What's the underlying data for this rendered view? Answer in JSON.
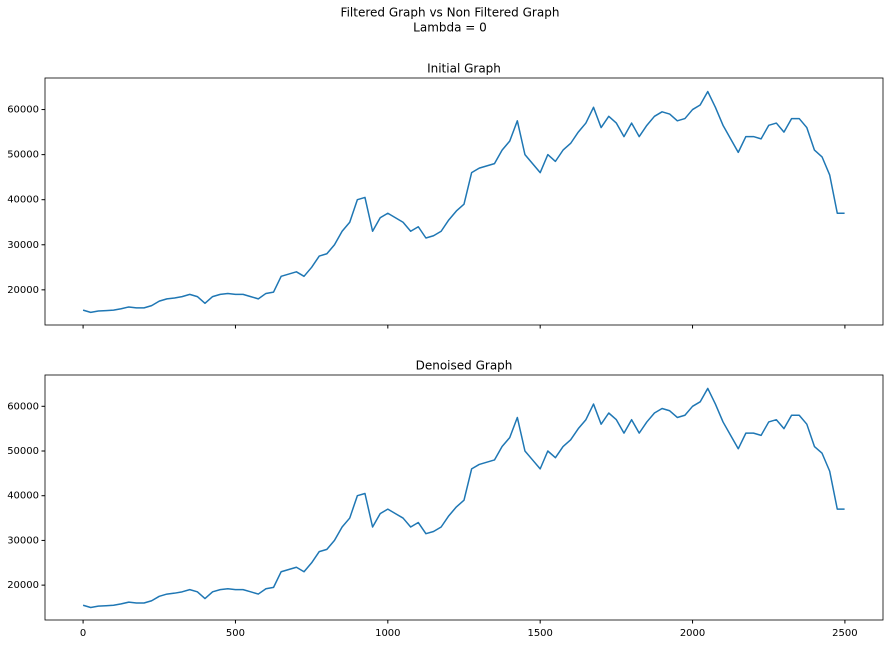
{
  "suptitle": "Filtered Graph vs Non Filtered Graph",
  "subtitle": "Lambda = 0",
  "chart_data": [
    {
      "type": "line",
      "title": "Initial Graph",
      "show_xtick_labels": false,
      "xlim": [
        -125,
        2625
      ],
      "ylim": [
        12200,
        67000
      ],
      "xticks": [
        0,
        500,
        1000,
        1500,
        2000,
        2500
      ],
      "yticks": [
        20000,
        30000,
        40000,
        50000,
        60000
      ],
      "x": [
        0,
        25,
        50,
        75,
        100,
        125,
        150,
        175,
        200,
        225,
        250,
        275,
        300,
        325,
        350,
        375,
        400,
        425,
        450,
        475,
        500,
        525,
        550,
        575,
        600,
        625,
        650,
        675,
        700,
        725,
        750,
        775,
        800,
        825,
        850,
        875,
        900,
        925,
        950,
        975,
        1000,
        1025,
        1050,
        1075,
        1100,
        1125,
        1150,
        1175,
        1200,
        1225,
        1250,
        1275,
        1300,
        1325,
        1350,
        1375,
        1400,
        1425,
        1450,
        1475,
        1500,
        1525,
        1550,
        1575,
        1600,
        1625,
        1650,
        1675,
        1700,
        1725,
        1750,
        1775,
        1800,
        1825,
        1850,
        1875,
        1900,
        1925,
        1950,
        1975,
        2000,
        2025,
        2050,
        2075,
        2100,
        2125,
        2150,
        2175,
        2200,
        2225,
        2250,
        2275,
        2300,
        2325,
        2350,
        2375,
        2400,
        2425,
        2450,
        2475,
        2499
      ],
      "series": [
        {
          "color": "#1f77b4",
          "values": [
            15500,
            15000,
            15300,
            15400,
            15500,
            15800,
            16200,
            16000,
            16000,
            16500,
            17500,
            18000,
            18200,
            18500,
            19000,
            18500,
            17000,
            18500,
            19000,
            19200,
            19000,
            19000,
            18500,
            18000,
            19200,
            19500,
            23000,
            23500,
            24000,
            23000,
            25000,
            27500,
            28000,
            30000,
            33000,
            35000,
            40000,
            40500,
            33000,
            36000,
            37000,
            36000,
            35000,
            33000,
            34000,
            31500,
            32000,
            33000,
            35500,
            37500,
            39000,
            46000,
            47000,
            47500,
            48000,
            51000,
            53000,
            57500,
            50000,
            48000,
            46000,
            50000,
            48500,
            51000,
            52500,
            55000,
            57000,
            60500,
            56000,
            58500,
            57000,
            54000,
            57000,
            54000,
            56500,
            58500,
            59500,
            59000,
            57500,
            58000,
            60000,
            61000,
            64000,
            60500,
            56500,
            53500,
            50500,
            54000,
            54000,
            53500,
            56500,
            57000,
            55000,
            58000,
            58000,
            56000,
            51000,
            49500,
            45500,
            37000,
            37000
          ]
        }
      ]
    },
    {
      "type": "line",
      "title": "Denoised Graph",
      "show_xtick_labels": true,
      "xlim": [
        -125,
        2625
      ],
      "ylim": [
        12200,
        67000
      ],
      "xticks": [
        0,
        500,
        1000,
        1500,
        2000,
        2500
      ],
      "yticks": [
        20000,
        30000,
        40000,
        50000,
        60000
      ],
      "x": [
        0,
        25,
        50,
        75,
        100,
        125,
        150,
        175,
        200,
        225,
        250,
        275,
        300,
        325,
        350,
        375,
        400,
        425,
        450,
        475,
        500,
        525,
        550,
        575,
        600,
        625,
        650,
        675,
        700,
        725,
        750,
        775,
        800,
        825,
        850,
        875,
        900,
        925,
        950,
        975,
        1000,
        1025,
        1050,
        1075,
        1100,
        1125,
        1150,
        1175,
        1200,
        1225,
        1250,
        1275,
        1300,
        1325,
        1350,
        1375,
        1400,
        1425,
        1450,
        1475,
        1500,
        1525,
        1550,
        1575,
        1600,
        1625,
        1650,
        1675,
        1700,
        1725,
        1750,
        1775,
        1800,
        1825,
        1850,
        1875,
        1900,
        1925,
        1950,
        1975,
        2000,
        2025,
        2050,
        2075,
        2100,
        2125,
        2150,
        2175,
        2200,
        2225,
        2250,
        2275,
        2300,
        2325,
        2350,
        2375,
        2400,
        2425,
        2450,
        2475,
        2499
      ],
      "series": [
        {
          "color": "#1f77b4",
          "values": [
            15500,
            15000,
            15300,
            15400,
            15500,
            15800,
            16200,
            16000,
            16000,
            16500,
            17500,
            18000,
            18200,
            18500,
            19000,
            18500,
            17000,
            18500,
            19000,
            19200,
            19000,
            19000,
            18500,
            18000,
            19200,
            19500,
            23000,
            23500,
            24000,
            23000,
            25000,
            27500,
            28000,
            30000,
            33000,
            35000,
            40000,
            40500,
            33000,
            36000,
            37000,
            36000,
            35000,
            33000,
            34000,
            31500,
            32000,
            33000,
            35500,
            37500,
            39000,
            46000,
            47000,
            47500,
            48000,
            51000,
            53000,
            57500,
            50000,
            48000,
            46000,
            50000,
            48500,
            51000,
            52500,
            55000,
            57000,
            60500,
            56000,
            58500,
            57000,
            54000,
            57000,
            54000,
            56500,
            58500,
            59500,
            59000,
            57500,
            58000,
            60000,
            61000,
            64000,
            60500,
            56500,
            53500,
            50500,
            54000,
            54000,
            53500,
            56500,
            57000,
            55000,
            58000,
            58000,
            56000,
            51000,
            49500,
            45500,
            37000,
            37000
          ]
        }
      ]
    }
  ]
}
